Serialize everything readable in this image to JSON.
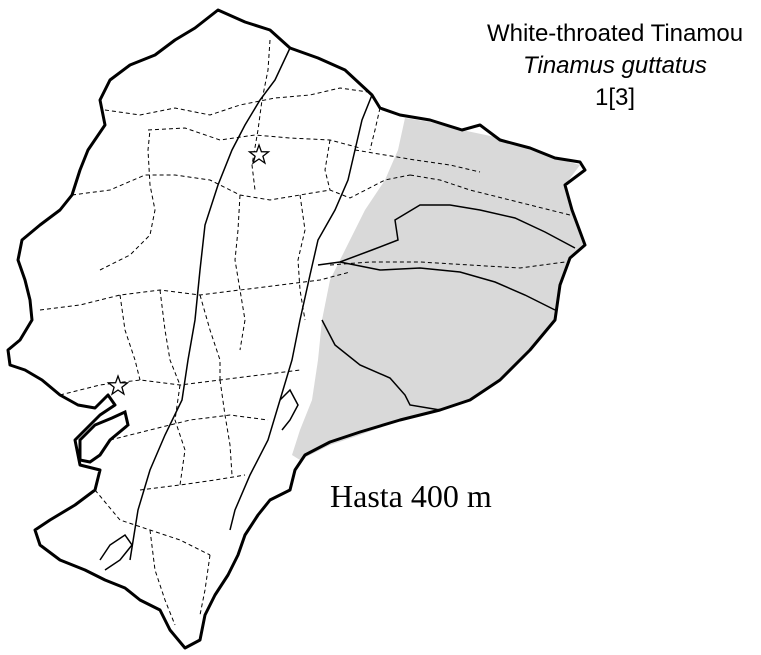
{
  "species": {
    "common_name": "White-throated Tinamou",
    "scientific_name": "Tinamus guttatus",
    "code": "1[3]"
  },
  "range_label": "Hasta 400 m",
  "colors": {
    "range_fill": "#d9d9d9",
    "outline": "#000000",
    "background": "#ffffff"
  },
  "markers": [
    "star-icon",
    "star-icon"
  ]
}
